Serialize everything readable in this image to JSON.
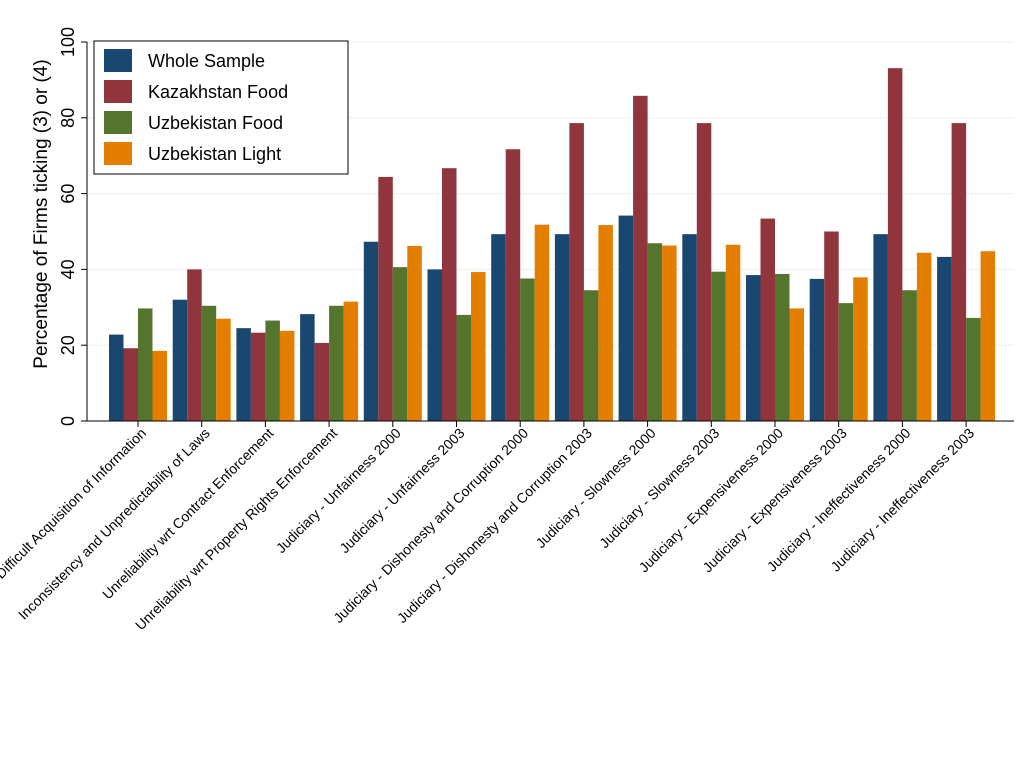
{
  "chart_data": {
    "type": "bar",
    "title": "",
    "xlabel": "",
    "ylabel": "Percentage of Firms ticking (3) or (4)",
    "ylim": [
      0,
      100
    ],
    "yticks": [
      0,
      20,
      40,
      60,
      80,
      100
    ],
    "grid": true,
    "legend_position": "top-left",
    "categories": [
      "Difficult Acquisition of Information",
      "Inconsistency and Unpredictability of Laws",
      "Unreliability wrt Contract Enforcement",
      "Unreliability wrt Property Rights Enforcement",
      "Judiciary - Unfairness 2000",
      "Judiciary - Unfairness 2003",
      "Judiciary - Dishonesty and Corruption 2000",
      "Judiciary - Dishonesty and Corruption 2003",
      "Judiciary - Slowness 2000",
      "Judiciary - Slowness 2003",
      "Judiciary - Expensiveness 2000",
      "Judiciary - Expensiveness 2003",
      "Judiciary - Ineffectiveness 2000",
      "Judiciary - Ineffectiveness 2003"
    ],
    "series": [
      {
        "name": "Whole Sample",
        "color": "#1a476f",
        "values": [
          22.8,
          32.0,
          24.5,
          28.2,
          47.3,
          40.0,
          49.3,
          49.3,
          54.2,
          49.3,
          38.5,
          37.5,
          49.3,
          43.3
        ]
      },
      {
        "name": "Kazakhstan Food",
        "color": "#90353b",
        "values": [
          19.2,
          40.0,
          23.3,
          20.6,
          64.4,
          66.7,
          71.7,
          78.6,
          85.8,
          78.6,
          53.4,
          50.0,
          93.1,
          78.6
        ]
      },
      {
        "name": "Uzbekistan Food",
        "color": "#55752f",
        "values": [
          29.7,
          30.4,
          26.5,
          30.4,
          40.6,
          28.0,
          37.6,
          34.5,
          46.9,
          39.4,
          38.8,
          31.1,
          34.5,
          27.2
        ]
      },
      {
        "name": "Uzbekistan Light",
        "color": "#e37e00",
        "values": [
          18.5,
          27.0,
          23.8,
          31.5,
          46.2,
          39.3,
          51.8,
          51.7,
          46.3,
          46.5,
          29.7,
          37.9,
          44.4,
          44.8
        ]
      }
    ]
  }
}
